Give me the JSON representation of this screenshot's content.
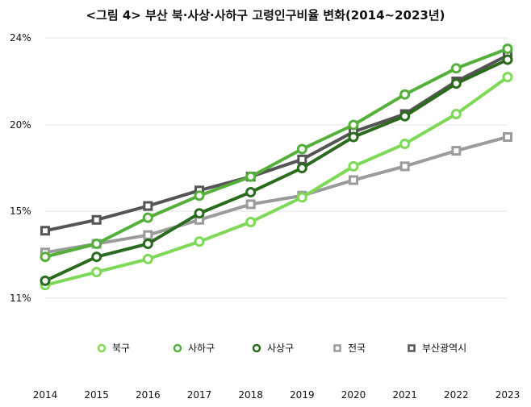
{
  "chart_data": {
    "type": "line",
    "title": "<그림 4> 부산 북·사상·사하구 고령인구비율 변화(2014~2023년)",
    "x": [
      "2014",
      "2015",
      "2016",
      "2017",
      "2018",
      "2019",
      "2020",
      "2021",
      "2022",
      "2023"
    ],
    "y_ticks": [
      "24%",
      "20%",
      "15%",
      "11%"
    ],
    "ylim": [
      11,
      24
    ],
    "grid": true,
    "legend_position": "bottom",
    "series": [
      {
        "name": "북구",
        "color": "#7ed957",
        "marker": "circle",
        "values": [
          11.6,
          12.2,
          12.8,
          13.6,
          14.5,
          15.8,
          17.6,
          18.9,
          20.5,
          22.2
        ]
      },
      {
        "name": "사하구",
        "color": "#55b03a",
        "marker": "circle",
        "values": [
          12.9,
          13.5,
          14.7,
          15.9,
          17.0,
          18.6,
          20.0,
          21.4,
          22.6,
          23.5
        ]
      },
      {
        "name": "사상구",
        "color": "#2a6b1e",
        "marker": "circle",
        "values": [
          11.8,
          12.9,
          13.5,
          14.9,
          16.1,
          17.5,
          19.3,
          20.4,
          21.9,
          23.0
        ]
      },
      {
        "name": "전국",
        "color": "#9b9b9b",
        "marker": "square",
        "values": [
          13.1,
          13.5,
          13.9,
          14.6,
          15.4,
          15.9,
          16.8,
          17.6,
          18.5,
          19.3
        ]
      },
      {
        "name": "부산광역시",
        "color": "#555555",
        "marker": "square",
        "values": [
          14.1,
          14.6,
          15.3,
          16.2,
          17.0,
          18.0,
          19.6,
          20.5,
          22.0,
          23.2
        ]
      }
    ]
  }
}
